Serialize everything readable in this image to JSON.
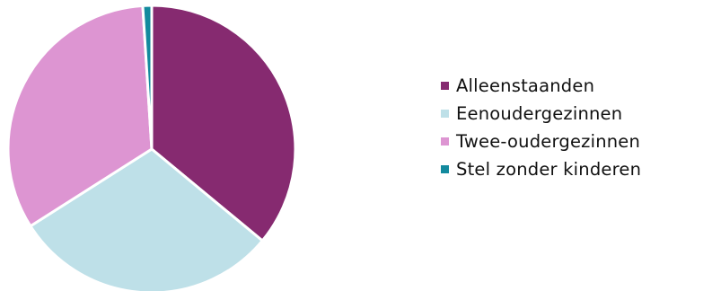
{
  "chart_data": {
    "type": "pie",
    "title": "",
    "legend_position": "right",
    "slices": [
      {
        "label": "Alleenstaanden",
        "value": 36,
        "color": "#862A70"
      },
      {
        "label": "Eenoudergezinnen",
        "value": 30,
        "color": "#BEE0E8"
      },
      {
        "label": "Twee-oudergezinnen",
        "value": 33,
        "color": "#DD95D2"
      },
      {
        "label": "Stel zonder kinderen",
        "value": 1,
        "color": "#138A9E"
      }
    ]
  }
}
